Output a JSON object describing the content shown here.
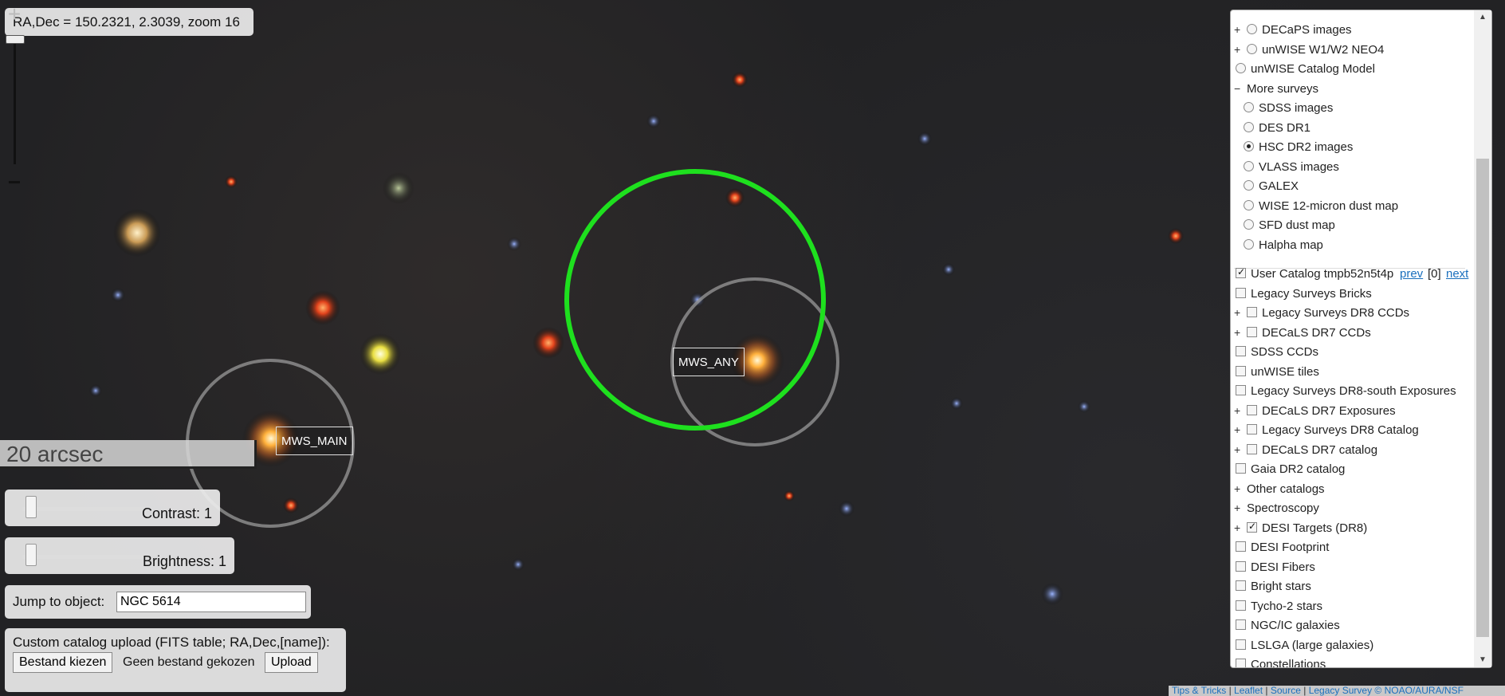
{
  "map": {
    "coords_text": "RA,Dec = 150.2321, 2.3039, zoom 16",
    "scale_label": "20 arcsec",
    "targets": [
      {
        "label": "MWS_ANY"
      },
      {
        "label": "MWS_MAIN"
      }
    ]
  },
  "zoom": {
    "in_symbol": "+",
    "out_symbol": "−"
  },
  "controls": {
    "contrast_label": "Contrast: 1",
    "brightness_label": "Brightness: 1",
    "jump_label": "Jump to object:",
    "jump_value": "NGC 5614",
    "upload_label": "Custom catalog upload (FITS table; RA,Dec,[name]):",
    "choose_file": "Bestand kiezen",
    "no_file": "Geen bestand gekozen",
    "upload": "Upload"
  },
  "layers": {
    "rows": [
      {
        "pm": "+",
        "type": "radio",
        "on": false,
        "label": "DECaPS images"
      },
      {
        "pm": "+",
        "type": "radio",
        "on": false,
        "label": "unWISE W1/W2 NEO4"
      },
      {
        "pm": "",
        "type": "radio",
        "on": false,
        "label": "unWISE Catalog Model"
      },
      {
        "pm": "−",
        "type": "none",
        "on": false,
        "label": "More surveys"
      },
      {
        "pm": "",
        "type": "radio",
        "on": false,
        "label": "SDSS images",
        "indent": true
      },
      {
        "pm": "",
        "type": "radio",
        "on": false,
        "label": "DES DR1",
        "indent": true
      },
      {
        "pm": "",
        "type": "radio",
        "on": true,
        "label": "HSC DR2 images",
        "indent": true
      },
      {
        "pm": "",
        "type": "radio",
        "on": false,
        "label": "VLASS images",
        "indent": true
      },
      {
        "pm": "",
        "type": "radio",
        "on": false,
        "label": "GALEX",
        "indent": true
      },
      {
        "pm": "",
        "type": "radio",
        "on": false,
        "label": "WISE 12-micron dust map",
        "indent": true
      },
      {
        "pm": "",
        "type": "radio",
        "on": false,
        "label": "SFD dust map",
        "indent": true
      },
      {
        "pm": "",
        "type": "radio",
        "on": false,
        "label": "Halpha map",
        "indent": true
      }
    ],
    "user_catalog": {
      "label": "User Catalog tmpb52n5t4p",
      "prev": "prev",
      "count": "[0]",
      "next": "next"
    },
    "overlays": [
      {
        "pm": "",
        "on": false,
        "label": "Legacy Surveys Bricks"
      },
      {
        "pm": "+",
        "on": false,
        "label": "Legacy Surveys DR8 CCDs"
      },
      {
        "pm": "+",
        "on": false,
        "label": "DECaLS DR7 CCDs"
      },
      {
        "pm": "",
        "on": false,
        "label": "SDSS CCDs"
      },
      {
        "pm": "",
        "on": false,
        "label": "unWISE tiles"
      },
      {
        "pm": "",
        "on": false,
        "label": "Legacy Surveys DR8-south Exposures"
      },
      {
        "pm": "+",
        "on": false,
        "label": "DECaLS DR7 Exposures"
      },
      {
        "pm": "+",
        "on": false,
        "label": "Legacy Surveys DR8 Catalog"
      },
      {
        "pm": "+",
        "on": false,
        "label": "DECaLS DR7 catalog"
      },
      {
        "pm": "",
        "on": false,
        "label": "Gaia DR2 catalog"
      },
      {
        "pm": "+",
        "type": "none",
        "on": false,
        "label": "Other catalogs"
      },
      {
        "pm": "+",
        "type": "none",
        "on": false,
        "label": "Spectroscopy"
      },
      {
        "pm": "+",
        "on": true,
        "label": "DESI Targets (DR8)"
      },
      {
        "pm": "",
        "on": false,
        "label": "DESI Footprint"
      },
      {
        "pm": "",
        "on": false,
        "label": "DESI Fibers"
      },
      {
        "pm": "",
        "on": false,
        "label": "Bright stars"
      },
      {
        "pm": "",
        "on": false,
        "label": "Tycho-2 stars"
      },
      {
        "pm": "",
        "on": false,
        "label": "NGC/IC galaxies"
      },
      {
        "pm": "",
        "on": false,
        "label": "LSLGA (large galaxies)"
      },
      {
        "pm": "",
        "on": false,
        "label": "Constellations"
      }
    ]
  },
  "attribution": {
    "tips": "Tips & Tricks",
    "leaflet": "Leaflet",
    "source": "Source",
    "credit": "Legacy Survey © NOAO/AURA/NSF"
  }
}
